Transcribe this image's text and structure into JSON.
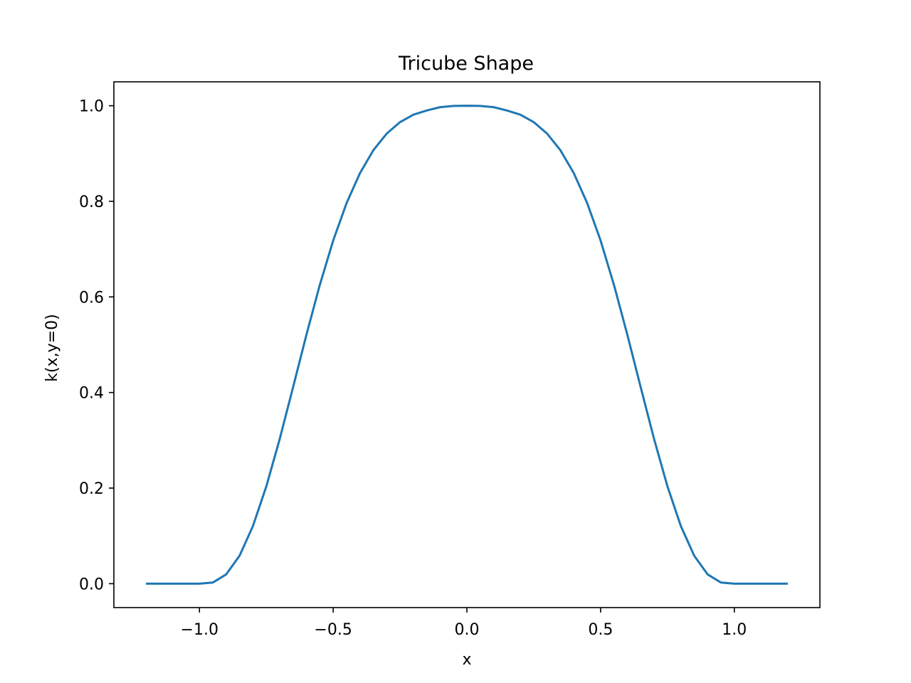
{
  "chart_data": {
    "type": "line",
    "title": "Tricube Shape",
    "xlabel": "x",
    "ylabel": "k(x,y=0)",
    "xlim": [
      -1.32,
      1.32
    ],
    "ylim": [
      -0.05,
      1.05
    ],
    "grid": false,
    "x_ticks": [
      {
        "value": -1.0,
        "label": "−1.0"
      },
      {
        "value": -0.5,
        "label": "−0.5"
      },
      {
        "value": 0.0,
        "label": "0.0"
      },
      {
        "value": 0.5,
        "label": "0.5"
      },
      {
        "value": 1.0,
        "label": "1.0"
      }
    ],
    "y_ticks": [
      {
        "value": 0.0,
        "label": "0.0"
      },
      {
        "value": 0.2,
        "label": "0.2"
      },
      {
        "value": 0.4,
        "label": "0.4"
      },
      {
        "value": 0.6,
        "label": "0.6"
      },
      {
        "value": 0.8,
        "label": "0.8"
      },
      {
        "value": 1.0,
        "label": "1.0"
      }
    ],
    "series": [
      {
        "color": "#1f77b4",
        "x": [
          -1.2,
          -1.1,
          -1.0,
          -0.95,
          -0.9,
          -0.85,
          -0.8,
          -0.75,
          -0.7,
          -0.65,
          -0.6,
          -0.55,
          -0.5,
          -0.45,
          -0.4,
          -0.35,
          -0.3,
          -0.25,
          -0.2,
          -0.15,
          -0.1,
          -0.05,
          0.0,
          0.05,
          0.1,
          0.15,
          0.2,
          0.25,
          0.3,
          0.35,
          0.4,
          0.45,
          0.5,
          0.55,
          0.6,
          0.65,
          0.7,
          0.75,
          0.8,
          0.85,
          0.9,
          0.95,
          1.0,
          1.1,
          1.2
        ],
        "y": [
          0.0,
          0.0,
          0.0,
          0.0024,
          0.0195,
          0.0585,
          0.1206,
          0.2036,
          0.3025,
          0.4109,
          0.5208,
          0.625,
          0.7178,
          0.796,
          0.8587,
          0.9066,
          0.9416,
          0.9657,
          0.9813,
          0.99,
          0.997,
          0.9996,
          1.0,
          0.9996,
          0.997,
          0.99,
          0.9813,
          0.9657,
          0.9416,
          0.9066,
          0.8587,
          0.796,
          0.7178,
          0.625,
          0.5208,
          0.4109,
          0.3025,
          0.2036,
          0.1206,
          0.0585,
          0.0195,
          0.0024,
          0.0,
          0.0,
          0.0
        ]
      }
    ]
  }
}
